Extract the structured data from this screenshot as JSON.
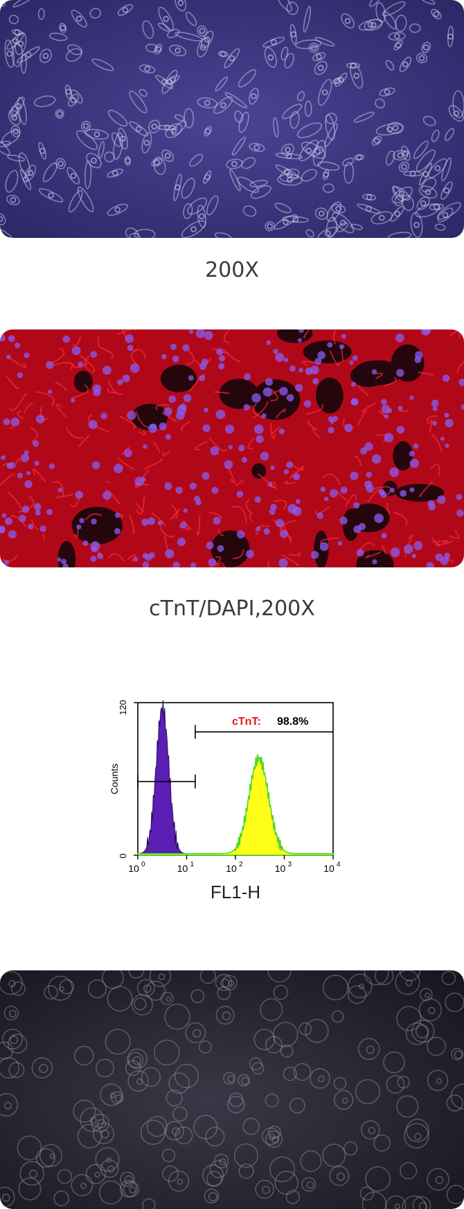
{
  "images": [
    {
      "caption": "200X",
      "stain": "phase-contrast",
      "tint": "#3c3580"
    },
    {
      "caption": "cTnT/DAPI,200X",
      "stain": "immunofluorescence",
      "tint": "#d01020"
    },
    {
      "caption": "",
      "stain": "phase-contrast",
      "tint": "#202030"
    }
  ],
  "flow": {
    "ylabel": "Counts",
    "xlabel": "FL1-H",
    "y_ticks": [
      "0",
      "120"
    ],
    "x_tick_exponents": [
      "0",
      "1",
      "2",
      "3",
      "4"
    ],
    "gate_label": "cTnT:",
    "gate_value": "98.8%",
    "gate_color": "#e01a1a",
    "isotype_color": "#5b1fb4",
    "sample_fill": "#ffff1a",
    "sample_outline": "#4ad62a"
  },
  "chart_data": {
    "type": "area",
    "xscale": "log",
    "xlim": [
      1,
      10000
    ],
    "ylim": [
      0,
      120
    ],
    "xlabel": "FL1-H",
    "ylabel": "Counts",
    "series": [
      {
        "peak_x": 3.2,
        "peak_count": 115
      },
      {
        "peak_x": 300,
        "peak_count": 75
      }
    ],
    "annotations": [
      {
        "text": "cTnT: 98.8%"
      }
    ]
  }
}
